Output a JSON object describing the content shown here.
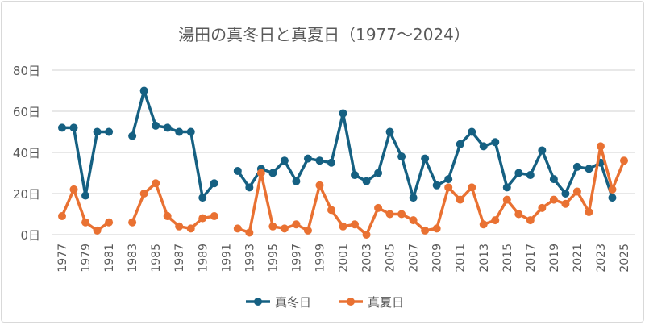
{
  "chart_data": {
    "type": "line",
    "title": "湯田の真冬日と真夏日（1977～2024）",
    "xlabel": "",
    "ylabel": "",
    "ylim": [
      0,
      80
    ],
    "yticks": [
      "0日",
      "20日",
      "40日",
      "60日",
      "80日"
    ],
    "ytick_values": [
      0,
      20,
      40,
      60,
      80
    ],
    "xticks": [
      "1977",
      "1979",
      "1981",
      "1983",
      "1985",
      "1987",
      "1989",
      "1991",
      "1993",
      "1995",
      "1997",
      "1999",
      "2001",
      "2003",
      "2005",
      "2007",
      "2009",
      "2011",
      "2013",
      "2015",
      "2017",
      "2019",
      "2021",
      "2023",
      "2025"
    ],
    "grid": true,
    "legend_position": "bottom",
    "x": [
      1977,
      1978,
      1979,
      1980,
      1981,
      1982,
      1983,
      1984,
      1985,
      1986,
      1987,
      1988,
      1989,
      1990,
      1991,
      1992,
      1993,
      1994,
      1995,
      1996,
      1997,
      1998,
      1999,
      2000,
      2001,
      2002,
      2003,
      2004,
      2005,
      2006,
      2007,
      2008,
      2009,
      2010,
      2011,
      2012,
      2013,
      2014,
      2015,
      2016,
      2017,
      2018,
      2019,
      2020,
      2021,
      2022,
      2023,
      2024,
      2025
    ],
    "series": [
      {
        "name": "真冬日",
        "color": "#156082",
        "values": [
          52,
          52,
          19,
          50,
          50,
          null,
          48,
          70,
          53,
          52,
          50,
          50,
          18,
          25,
          null,
          31,
          23,
          32,
          30,
          36,
          26,
          37,
          36,
          35,
          59,
          29,
          26,
          30,
          50,
          38,
          18,
          37,
          24,
          27,
          44,
          50,
          43,
          45,
          23,
          30,
          29,
          41,
          27,
          20,
          33,
          32,
          35,
          18,
          null
        ]
      },
      {
        "name": "真夏日",
        "color": "#E97132",
        "values": [
          9,
          22,
          6,
          2,
          6,
          null,
          6,
          20,
          25,
          9,
          4,
          3,
          8,
          9,
          null,
          3,
          1,
          30,
          4,
          3,
          5,
          2,
          24,
          12,
          4,
          5,
          0,
          13,
          10,
          10,
          7,
          2,
          3,
          23,
          17,
          23,
          5,
          7,
          17,
          10,
          7,
          13,
          17,
          15,
          21,
          11,
          43,
          22,
          36
        ]
      }
    ]
  }
}
